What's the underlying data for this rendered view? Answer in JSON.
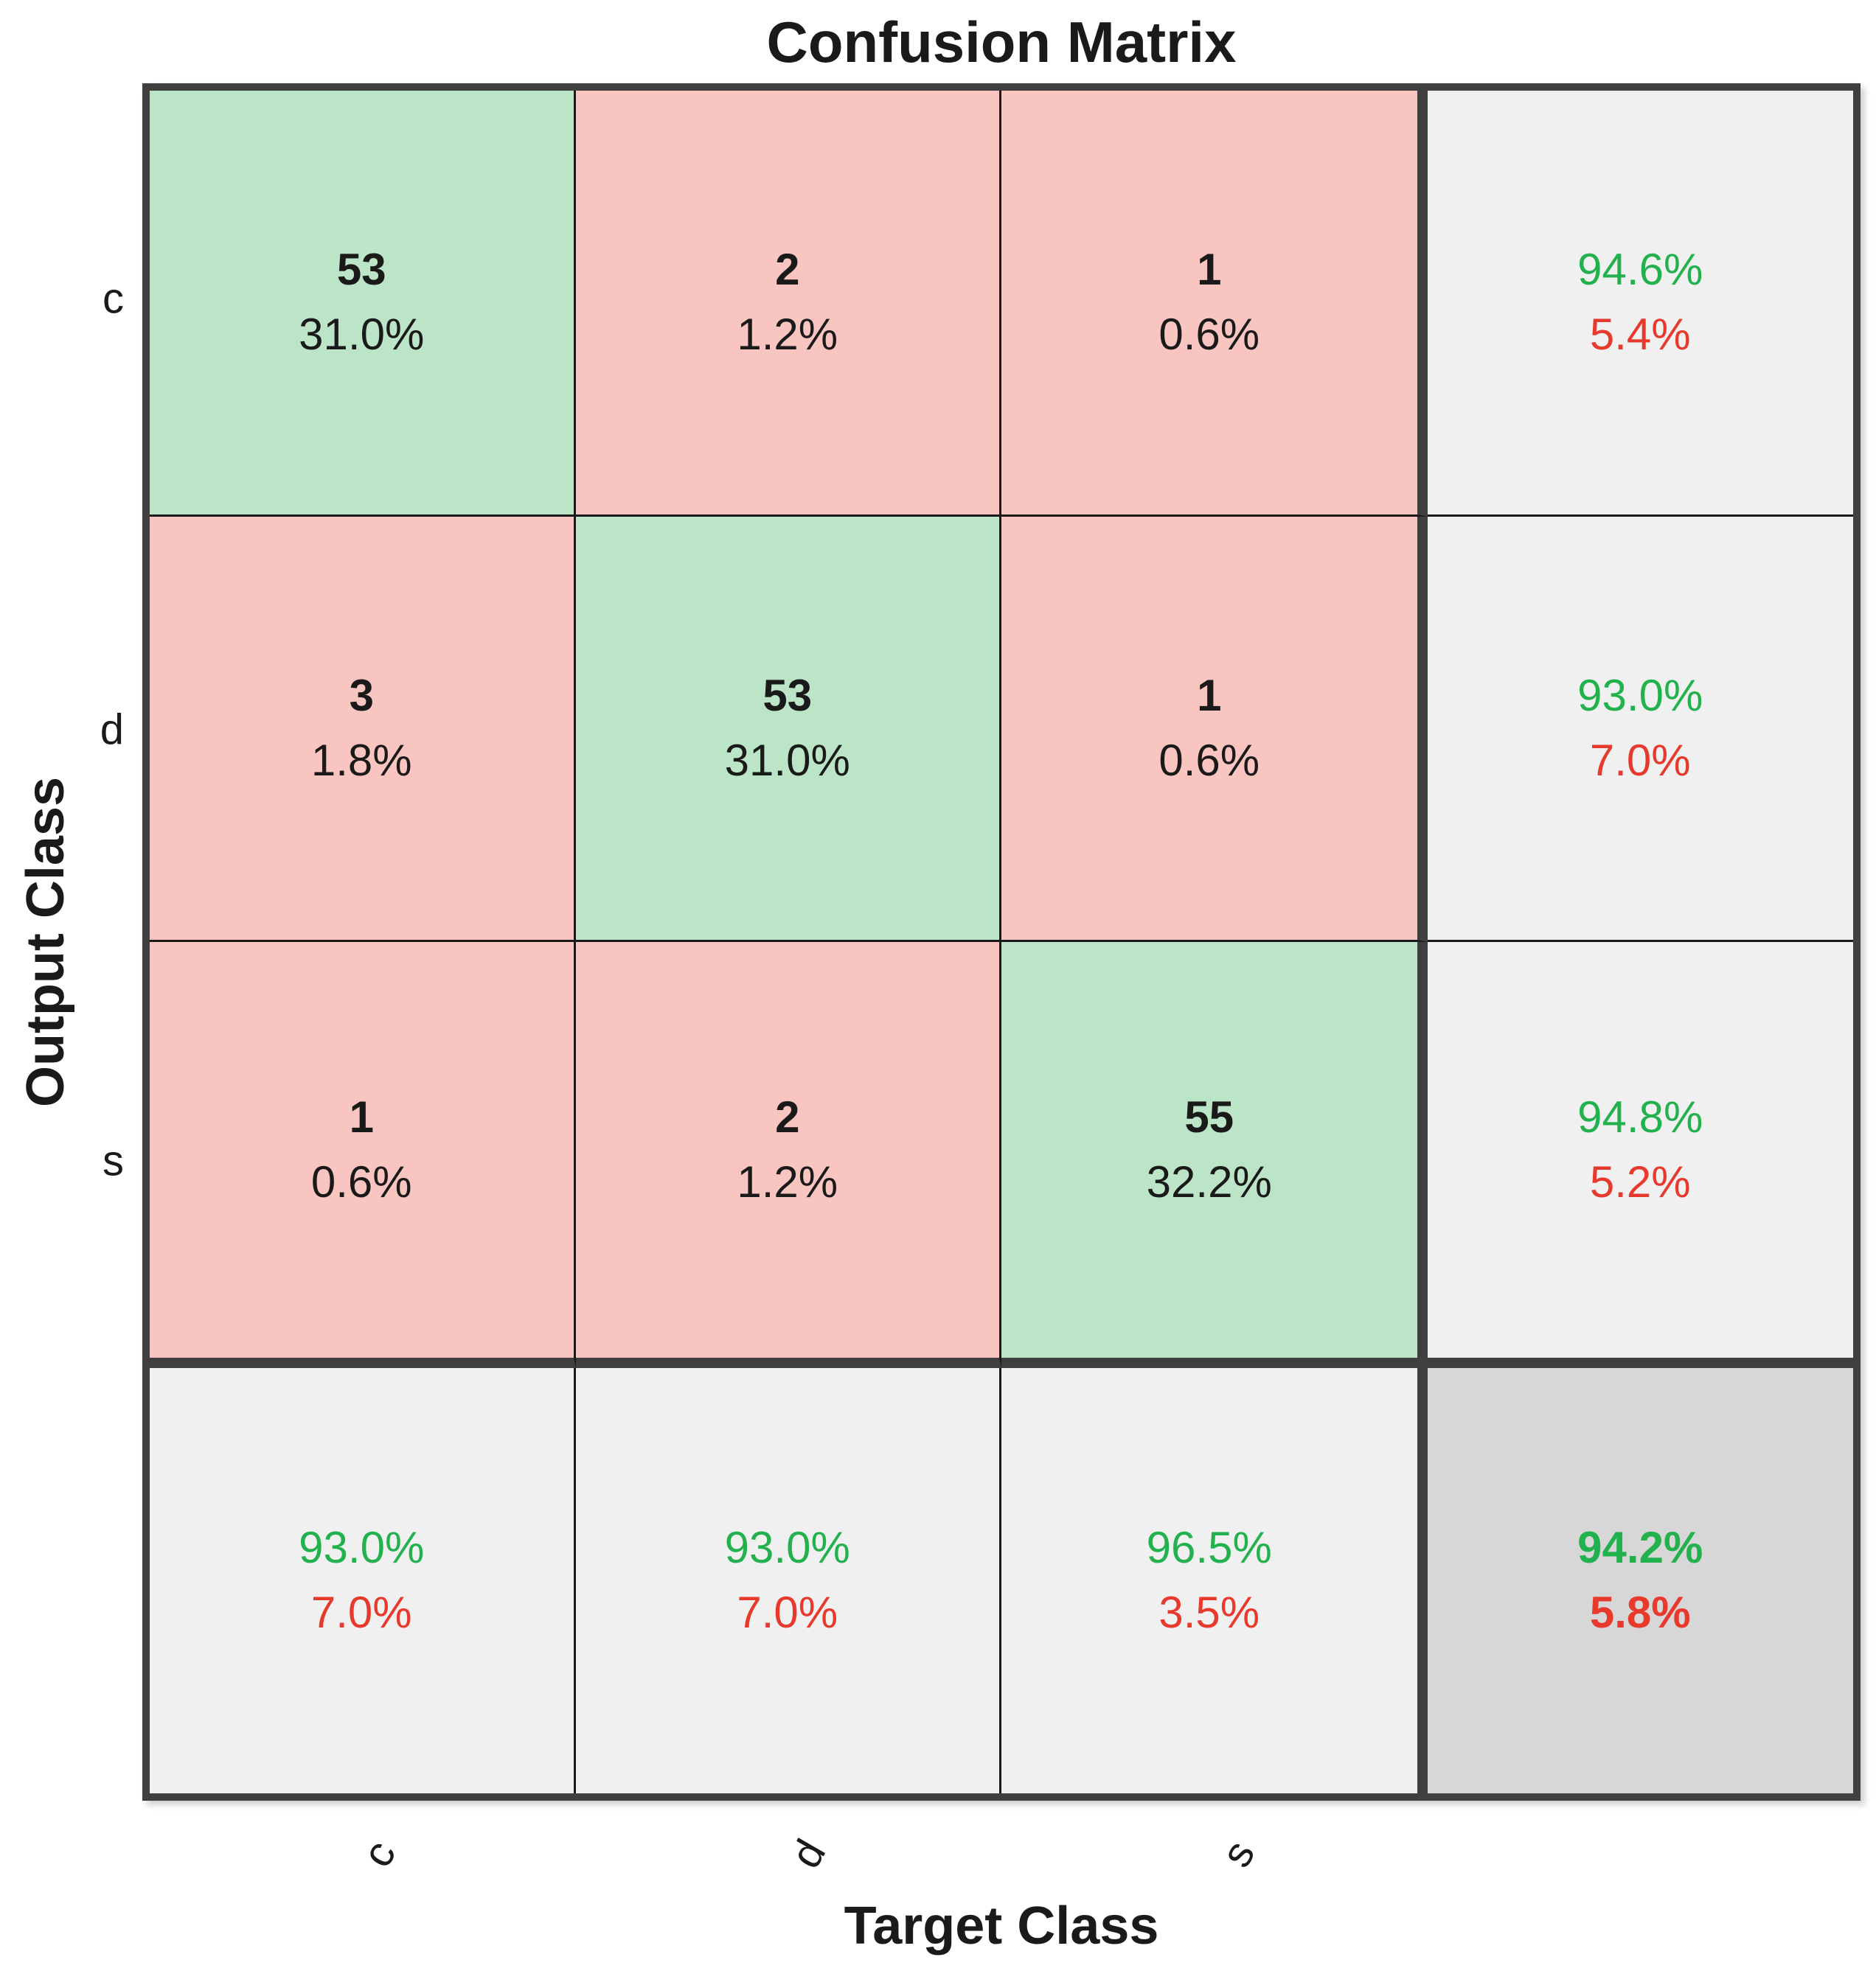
{
  "title": "Confusion Matrix",
  "axes": {
    "y_label": "Output Class",
    "x_label": "Target Class"
  },
  "classes": [
    "c",
    "d",
    "s"
  ],
  "colors": {
    "green-bg": "#bce4c7",
    "pink-bg": "#f9c5c0",
    "gray-bg": "#f0f0f0",
    "darkgray-bg": "#d7d7d7",
    "line": "#1a1a1a",
    "sep": "#3f3f3f",
    "green-tx": "#23b14d",
    "red-tx": "#e8392d"
  },
  "grid": {
    "cells": [
      {
        "type": "diag",
        "line1": "53",
        "line2": "31.0%"
      },
      {
        "type": "off",
        "line1": "2",
        "line2": "1.2%"
      },
      {
        "type": "off",
        "line1": "1",
        "line2": "0.6%"
      },
      {
        "type": "sum",
        "line1": "94.6%",
        "line2": "5.4%"
      },
      {
        "type": "off",
        "line1": "3",
        "line2": "1.8%"
      },
      {
        "type": "diag",
        "line1": "53",
        "line2": "31.0%"
      },
      {
        "type": "off",
        "line1": "1",
        "line2": "0.6%"
      },
      {
        "type": "sum",
        "line1": "93.0%",
        "line2": "7.0%"
      },
      {
        "type": "off",
        "line1": "1",
        "line2": "0.6%"
      },
      {
        "type": "off",
        "line1": "2",
        "line2": "1.2%"
      },
      {
        "type": "diag",
        "line1": "55",
        "line2": "32.2%"
      },
      {
        "type": "sum",
        "line1": "94.8%",
        "line2": "5.2%"
      },
      {
        "type": "sum",
        "line1": "93.0%",
        "line2": "7.0%"
      },
      {
        "type": "sum",
        "line1": "93.0%",
        "line2": "7.0%"
      },
      {
        "type": "sum",
        "line1": "96.5%",
        "line2": "3.5%"
      },
      {
        "type": "total",
        "line1": "94.2%",
        "line2": "5.8%"
      }
    ]
  },
  "chart_data": {
    "type": "heatmap",
    "subtype": "confusion-matrix",
    "title": "Confusion Matrix",
    "xlabel": "Target Class",
    "ylabel": "Output Class",
    "classes": [
      "c",
      "d",
      "s"
    ],
    "matrix_counts": [
      [
        53,
        2,
        1
      ],
      [
        3,
        53,
        1
      ],
      [
        1,
        2,
        55
      ]
    ],
    "matrix_percent_of_total": [
      [
        31.0,
        1.2,
        0.6
      ],
      [
        1.8,
        31.0,
        0.6
      ],
      [
        0.6,
        1.2,
        32.2
      ]
    ],
    "row_summary_correct_pct": [
      94.6,
      93.0,
      94.8
    ],
    "row_summary_error_pct": [
      5.4,
      7.0,
      5.2
    ],
    "col_summary_correct_pct": [
      93.0,
      93.0,
      96.5
    ],
    "col_summary_error_pct": [
      7.0,
      7.0,
      3.5
    ],
    "overall_accuracy_pct": 94.2,
    "overall_error_pct": 5.8,
    "legend_position": "none",
    "grid": true
  }
}
